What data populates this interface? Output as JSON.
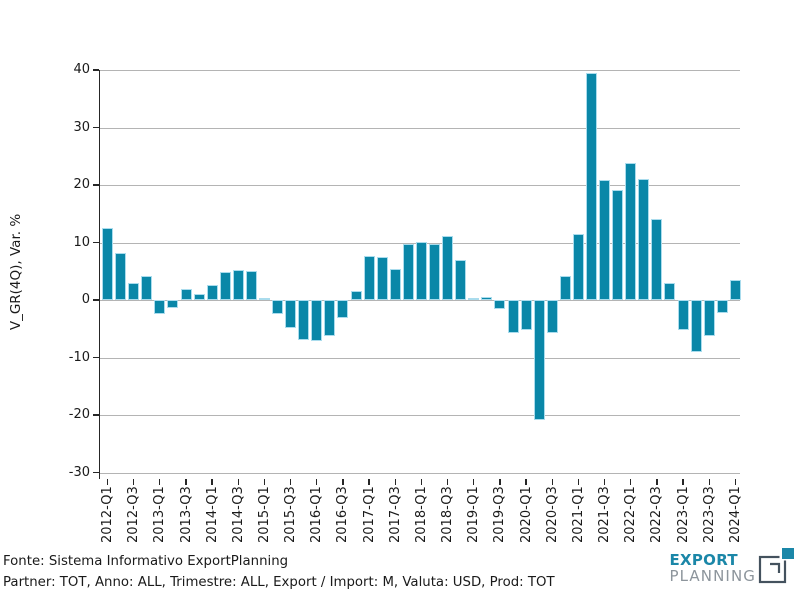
{
  "chart_data": {
    "type": "bar",
    "title": "",
    "xlabel": "",
    "ylabel": "V_GR(4Q), Var. %",
    "ylim": [
      -31.1,
      40
    ],
    "yticks": [
      40,
      30,
      20,
      10,
      0,
      -10,
      -20,
      -30
    ],
    "grid": true,
    "legend_position": "none",
    "x_tick_every": 2,
    "categories": [
      "2012-Q1",
      "2012-Q2",
      "2012-Q3",
      "2012-Q4",
      "2013-Q1",
      "2013-Q2",
      "2013-Q3",
      "2013-Q4",
      "2014-Q1",
      "2014-Q2",
      "2014-Q3",
      "2014-Q4",
      "2015-Q1",
      "2015-Q2",
      "2015-Q3",
      "2015-Q4",
      "2016-Q1",
      "2016-Q2",
      "2016-Q3",
      "2016-Q4",
      "2017-Q1",
      "2017-Q2",
      "2017-Q3",
      "2017-Q4",
      "2018-Q1",
      "2018-Q2",
      "2018-Q3",
      "2018-Q4",
      "2019-Q1",
      "2019-Q2",
      "2019-Q3",
      "2019-Q4",
      "2020-Q1",
      "2020-Q2",
      "2020-Q3",
      "2020-Q4",
      "2021-Q1",
      "2021-Q2",
      "2021-Q3",
      "2021-Q4",
      "2022-Q1",
      "2022-Q2",
      "2022-Q3",
      "2022-Q4",
      "2023-Q1",
      "2023-Q2",
      "2023-Q3",
      "2023-Q4",
      "2024-Q1"
    ],
    "values": [
      12.6,
      8.1,
      3.0,
      4.2,
      -2.5,
      -1.4,
      1.9,
      1.0,
      2.6,
      4.9,
      5.3,
      5.0,
      0.3,
      -2.5,
      -4.9,
      -7.0,
      -7.1,
      -6.3,
      -3.2,
      1.6,
      7.7,
      7.4,
      5.4,
      9.8,
      10.1,
      9.7,
      11.1,
      7.0,
      0.3,
      0.5,
      -1.6,
      -5.7,
      -5.2,
      -20.9,
      -5.7,
      4.2,
      11.5,
      39.5,
      20.9,
      19.1,
      23.8,
      21.0,
      14.1,
      2.9,
      -5.2,
      -9.1,
      -6.3,
      -2.3,
      3.5
    ],
    "bar_color": "#0a87a8",
    "bar_edge_color": "#aadced",
    "grid_color": "#b4b4b4",
    "axis_color": "#262626"
  },
  "footer": {
    "line1": "Fonte: Sistema Informativo ExportPlanning",
    "line2": "Partner: TOT, Anno: ALL, Trimestre: ALL, Export / Import: M, Valuta: USD, Prod: TOT"
  },
  "logo": {
    "word1": "EXPORT",
    "word2": "PLANNING",
    "accent_color": "#1b87a8",
    "gray_color": "#8d959c",
    "icon_outline_color": "#44525e"
  }
}
